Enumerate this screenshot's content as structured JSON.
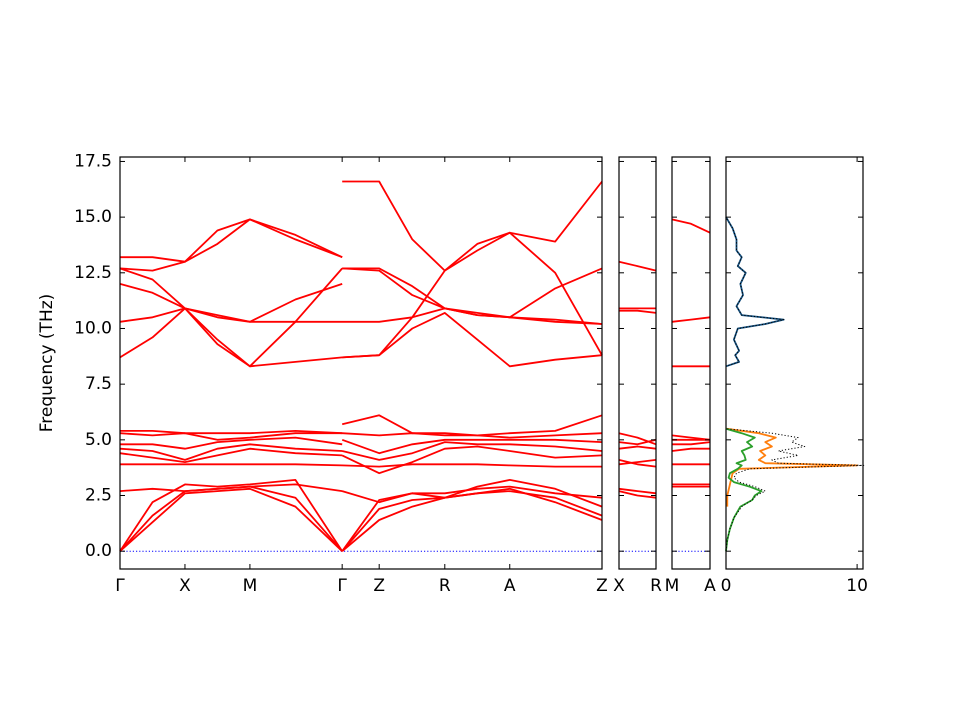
{
  "chart_data": [
    {
      "type": "line",
      "ylabel": "Frequency (THz)",
      "ylim": [
        -0.8,
        17.7
      ],
      "yticks": [
        {
          "value": 0,
          "label": "0.0"
        },
        2.5,
        {
          "value": 5,
          "label": "5.0"
        },
        7.5,
        {
          "value": 10,
          "label": "10.0"
        },
        12.5,
        {
          "value": 15,
          "label": "15.0"
        },
        17.5
      ],
      "xlim": [
        0,
        7.42
      ],
      "xticks": [
        {
          "value": 0,
          "label": "Γ"
        },
        {
          "value": 1,
          "label": "X"
        },
        {
          "value": 2,
          "label": "M"
        },
        {
          "value": 3.42,
          "label": "Γ"
        },
        {
          "value": 3.99,
          "label": "Z"
        },
        {
          "value": 5,
          "label": "R"
        },
        {
          "value": 6,
          "label": "A"
        },
        {
          "value": 7.42,
          "label": "Z"
        }
      ],
      "x": [
        0,
        0.5,
        1,
        1.5,
        2,
        2.7,
        3.42,
        3.42,
        3.42,
        3.99,
        4.5,
        5,
        5.5,
        6,
        6.7,
        7.42
      ],
      "series": [
        {
          "color": "#0000ff",
          "style": "dotted",
          "x": [
            0,
            7.42
          ],
          "values": [
            0,
            0
          ]
        },
        {
          "color": "#ff0000",
          "values": [
            0,
            1.3,
            2.6,
            2.7,
            2.8,
            2.0,
            0,
            null,
            0,
            1.4,
            2.0,
            2.4,
            2.6,
            2.8,
            2.2,
            1.4
          ]
        },
        {
          "color": "#ff0000",
          "values": [
            0,
            1.6,
            2.7,
            2.8,
            2.9,
            2.4,
            0,
            null,
            0,
            1.9,
            2.3,
            2.4,
            2.6,
            2.7,
            2.4,
            1.6
          ]
        },
        {
          "color": "#ff0000",
          "values": [
            0,
            2.2,
            3.0,
            2.9,
            3.0,
            3.2,
            0,
            null,
            0,
            2.3,
            2.6,
            2.4,
            2.9,
            3.2,
            2.8,
            2.0
          ]
        },
        {
          "color": "#ff0000",
          "values": [
            2.7,
            2.8,
            2.7,
            2.8,
            2.9,
            3.0,
            2.7,
            null,
            2.7,
            2.2,
            2.6,
            2.6,
            2.8,
            2.9,
            2.6,
            2.4
          ]
        },
        {
          "color": "#ff0000",
          "values": [
            3.9,
            3.9,
            3.9,
            3.9,
            3.9,
            3.9,
            3.85,
            null,
            3.85,
            3.8,
            3.9,
            3.9,
            3.9,
            3.85,
            3.8,
            3.8
          ]
        },
        {
          "color": "#ff0000",
          "values": [
            4.4,
            4.2,
            4.0,
            4.3,
            4.6,
            4.4,
            4.3,
            null,
            4.3,
            3.5,
            4.0,
            4.6,
            4.7,
            4.5,
            4.2,
            4.3
          ]
        },
        {
          "color": "#ff0000",
          "values": [
            4.6,
            4.5,
            4.1,
            4.6,
            4.8,
            4.6,
            4.5,
            null,
            4.5,
            4.1,
            4.4,
            4.9,
            4.8,
            4.8,
            4.7,
            4.5
          ]
        },
        {
          "color": "#ff0000",
          "values": [
            4.8,
            4.8,
            4.6,
            4.9,
            5.0,
            5.1,
            4.8,
            null,
            5.0,
            4.4,
            4.8,
            5.0,
            5.0,
            5.0,
            5.0,
            4.9
          ]
        },
        {
          "color": "#ff0000",
          "values": [
            5.3,
            5.2,
            5.3,
            5.0,
            5.1,
            5.3,
            5.3,
            null,
            5.3,
            5.2,
            5.3,
            5.2,
            5.2,
            5.1,
            5.2,
            5.3
          ]
        },
        {
          "color": "#ff0000",
          "values": [
            5.4,
            5.4,
            5.3,
            5.3,
            5.3,
            5.4,
            5.3,
            null,
            5.7,
            6.1,
            5.3,
            5.3,
            5.2,
            5.3,
            5.4,
            6.1
          ]
        },
        {
          "color": "#ff0000",
          "values": [
            8.7,
            9.6,
            10.9,
            9.5,
            8.3,
            8.5,
            8.7,
            null,
            8.7,
            8.8,
            10.0,
            10.7,
            9.5,
            8.3,
            8.6,
            8.8
          ]
        },
        {
          "color": "#ff0000",
          "values": [
            10.3,
            10.5,
            10.9,
            10.6,
            10.3,
            10.3,
            10.3,
            null,
            10.3,
            10.3,
            10.5,
            10.9,
            10.6,
            10.5,
            10.3,
            10.2
          ]
        },
        {
          "color": "#ff0000",
          "values": [
            12.0,
            11.6,
            10.9,
            10.5,
            10.3,
            11.3,
            12.0,
            null,
            12.7,
            12.6,
            11.5,
            10.9,
            10.7,
            10.5,
            11.8,
            12.7
          ]
        },
        {
          "color": "#ff0000",
          "values": [
            12.7,
            12.2,
            10.9,
            9.3,
            8.3,
            10.3,
            12.7,
            null,
            12.7,
            12.7,
            11.9,
            10.9,
            10.6,
            10.5,
            10.4,
            10.2
          ]
        },
        {
          "color": "#ff0000",
          "values": [
            12.7,
            12.6,
            13.0,
            14.4,
            14.9,
            14.0,
            13.2,
            null,
            8.7,
            8.8,
            10.5,
            12.6,
            13.8,
            14.3,
            12.5,
            8.8
          ]
        },
        {
          "color": "#ff0000",
          "values": [
            13.2,
            13.2,
            13.0,
            13.8,
            14.9,
            14.2,
            13.2,
            null,
            16.6,
            16.6,
            14.0,
            12.6,
            13.5,
            14.3,
            13.9,
            16.6
          ]
        }
      ]
    },
    {
      "type": "line",
      "xlim": [
        0,
        1
      ],
      "xticks": [
        {
          "value": 0,
          "label": "X"
        },
        {
          "value": 1,
          "label": "R"
        }
      ],
      "x": [
        0,
        0.5,
        1
      ],
      "series": [
        {
          "color": "#0000ff",
          "style": "dotted",
          "values": [
            0,
            0,
            0
          ]
        },
        {
          "color": "#ff0000",
          "values": [
            2.7,
            2.5,
            2.4
          ]
        },
        {
          "color": "#ff0000",
          "values": [
            2.8,
            2.7,
            2.6
          ]
        },
        {
          "color": "#ff0000",
          "values": [
            3.9,
            4.0,
            4.1
          ]
        },
        {
          "color": "#ff0000",
          "values": [
            4.1,
            3.9,
            3.8
          ]
        },
        {
          "color": "#ff0000",
          "values": [
            4.6,
            4.7,
            4.6
          ]
        },
        {
          "color": "#ff0000",
          "values": [
            4.9,
            4.8,
            5.0
          ]
        },
        {
          "color": "#ff0000",
          "values": [
            5.3,
            5.1,
            4.8
          ]
        },
        {
          "color": "#ff0000",
          "values": [
            10.8,
            10.8,
            10.7
          ]
        },
        {
          "color": "#ff0000",
          "values": [
            10.9,
            10.9,
            10.9
          ]
        },
        {
          "color": "#ff0000",
          "values": [
            13.0,
            12.8,
            12.6
          ]
        }
      ]
    },
    {
      "type": "line",
      "xlim": [
        0,
        1
      ],
      "xticks": [
        {
          "value": 0,
          "label": "M"
        },
        {
          "value": 1,
          "label": "A"
        }
      ],
      "x": [
        0,
        0.5,
        1
      ],
      "series": [
        {
          "color": "#0000ff",
          "style": "dotted",
          "values": [
            0,
            0,
            0
          ]
        },
        {
          "color": "#ff0000",
          "values": [
            2.9,
            2.9,
            2.9
          ]
        },
        {
          "color": "#ff0000",
          "values": [
            3.0,
            3.0,
            3.0
          ]
        },
        {
          "color": "#ff0000",
          "values": [
            3.9,
            3.9,
            3.9
          ]
        },
        {
          "color": "#ff0000",
          "values": [
            4.5,
            4.6,
            4.6
          ]
        },
        {
          "color": "#ff0000",
          "values": [
            4.8,
            4.8,
            4.9
          ]
        },
        {
          "color": "#ff0000",
          "values": [
            5.0,
            5.0,
            5.0
          ]
        },
        {
          "color": "#ff0000",
          "values": [
            5.2,
            5.1,
            5.0
          ]
        },
        {
          "color": "#ff0000",
          "values": [
            8.3,
            8.3,
            8.3
          ]
        },
        {
          "color": "#ff0000",
          "values": [
            10.3,
            10.4,
            10.5
          ]
        },
        {
          "color": "#ff0000",
          "values": [
            14.9,
            14.7,
            14.3
          ]
        }
      ]
    },
    {
      "type": "line",
      "orientation": "horizontal",
      "xlim": [
        0,
        10.45
      ],
      "xticks": [
        0,
        10
      ],
      "series": [
        {
          "color": "#15507f",
          "y": [
            8.3,
            8.5,
            8.8,
            9,
            9.5,
            10,
            10.2,
            10.4,
            10.6,
            11,
            11.5,
            12,
            12.5,
            12.8,
            13.2,
            13.5,
            14,
            14.5,
            15
          ],
          "values": [
            0,
            1.0,
            0.7,
            1.0,
            0.6,
            0.9,
            3.0,
            4.4,
            1.2,
            0.8,
            1.3,
            1.1,
            1.5,
            0.9,
            1.2,
            0.8,
            0.8,
            0.5,
            0
          ]
        },
        {
          "color": "#ff7f0e",
          "y": [
            2,
            2.5,
            3,
            3.5,
            3.7,
            3.85,
            3.95,
            4.1,
            4.3,
            4.5,
            4.7,
            4.9,
            5.1,
            5.3,
            5.5
          ],
          "values": [
            0.1,
            0.1,
            0.3,
            0.5,
            1.0,
            10.0,
            3.0,
            2.5,
            3.0,
            2.6,
            3.5,
            3.0,
            3.8,
            2.5,
            0
          ]
        },
        {
          "color": "#2ca02c",
          "y": [
            0,
            0.5,
            1,
            1.5,
            2,
            2.3,
            2.5,
            2.7,
            2.9,
            3.1,
            3.3,
            3.5,
            3.7,
            3.85,
            3.95,
            4.1,
            4.3,
            4.5,
            4.7,
            4.9,
            5.1,
            5.3,
            5.5
          ],
          "values": [
            0,
            0.1,
            0.3,
            0.6,
            1.1,
            2.0,
            2.2,
            2.7,
            1.8,
            0.6,
            0.2,
            0.3,
            0.9,
            1.2,
            0.8,
            1.5,
            1.4,
            1.2,
            2.0,
            1.6,
            2.2,
            1.2,
            0
          ]
        },
        {
          "color": "#000000",
          "style": "dotted",
          "y": [
            0,
            0.5,
            1,
            1.5,
            2,
            2.3,
            2.5,
            2.7,
            2.9,
            3.1,
            3.3,
            3.5,
            3.7,
            3.85,
            3.95,
            4.1,
            4.3,
            4.5,
            4.7,
            4.9,
            5.1,
            5.3,
            5.5,
            8.3,
            8.5,
            8.8,
            9,
            9.5,
            10,
            10.2,
            10.4,
            10.6,
            11,
            11.5,
            12,
            12.5,
            12.8,
            13.2,
            13.5,
            14,
            14.5,
            15
          ],
          "values": [
            0,
            0.1,
            0.3,
            0.6,
            1.2,
            2.0,
            2.3,
            3.0,
            2.2,
            1.0,
            0.6,
            0.8,
            1.8,
            10.5,
            4.0,
            3.5,
            5.5,
            4.0,
            6.0,
            5.0,
            5.5,
            3.5,
            0,
            0,
            1.0,
            0.7,
            1.0,
            0.6,
            0.9,
            3.0,
            4.4,
            1.2,
            0.8,
            1.3,
            1.1,
            1.5,
            0.9,
            1.2,
            0.8,
            0.8,
            0.5,
            0
          ]
        }
      ]
    }
  ]
}
